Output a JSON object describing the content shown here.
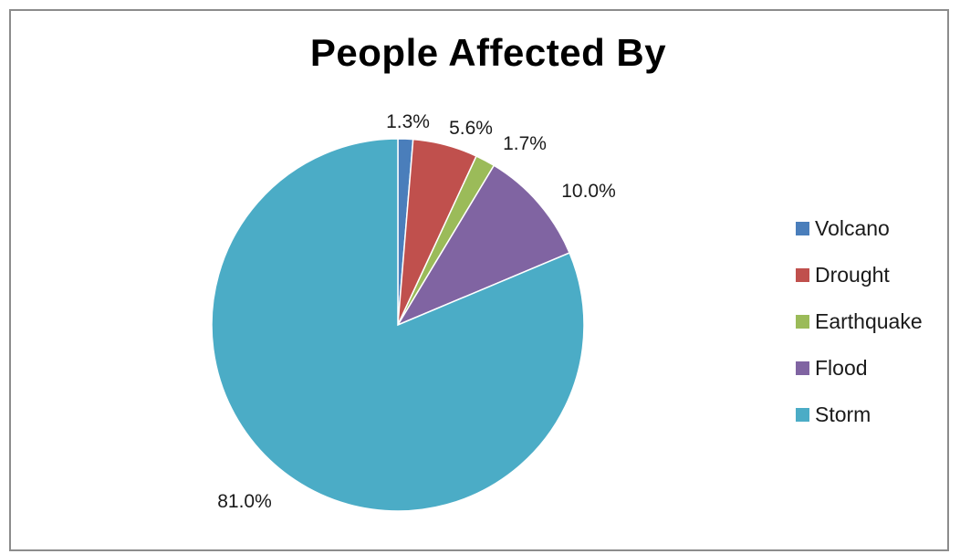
{
  "chart_data": {
    "type": "pie",
    "title": "People Affected By",
    "categories": [
      "Volcano",
      "Drought",
      "Earthquake",
      "Flood",
      "Storm"
    ],
    "values": [
      1.3,
      5.6,
      1.7,
      10.0,
      81.0
    ],
    "data_labels": [
      "1.3%",
      "5.6%",
      "1.7%",
      "10.0%",
      "81.0%"
    ],
    "colors": [
      "#4a7ebb",
      "#c0504d",
      "#9bbb59",
      "#8064a2",
      "#4bacc6"
    ],
    "legend_position": "right",
    "start_angle": "12 o'clock, clockwise"
  }
}
